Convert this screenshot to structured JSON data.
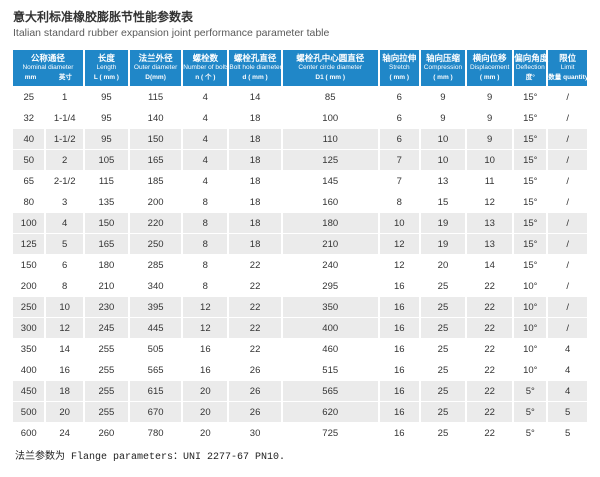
{
  "page": {
    "title_zh": "意大利标准橡胶膨胀节性能参数表",
    "title_en": "Italian standard rubber expansion joint performance parameter table",
    "footer_note": "法兰参数为 Flange parameters：UNI 2277-67 PN10."
  },
  "colors": {
    "header_bg": "#2087c8",
    "stripe_bg": "#ebebeb",
    "header_text": "#ffffff"
  },
  "table": {
    "columns": [
      {
        "zh": "公称通径",
        "en": "Nominal diameter",
        "unit_left": "mm",
        "unit_right": "英寸"
      },
      {
        "zh": "长度",
        "en": "Length",
        "unit": "L ( mm )"
      },
      {
        "zh": "法兰外径",
        "en": "Outer diameter",
        "unit": "D(mm)"
      },
      {
        "zh": "螺栓数",
        "en": "Number of bolts",
        "unit": "n ( 个 )"
      },
      {
        "zh": "螺栓孔直径",
        "en": "Bolt hole diameter",
        "unit": "d ( mm )"
      },
      {
        "zh": "螺栓孔中心圆直径",
        "en": "Center circle diameter",
        "unit": "D1 ( mm )"
      },
      {
        "zh": "轴向拉伸",
        "en": "Stretch",
        "unit": "( mm )"
      },
      {
        "zh": "轴向压缩",
        "en": "Compression",
        "unit": "( mm )"
      },
      {
        "zh": "横向位移",
        "en": "Displacement",
        "unit": "( mm )"
      },
      {
        "zh": "偏向角度",
        "en": "Deflection",
        "unit": "度°"
      },
      {
        "zh": "限位",
        "en": "Limit",
        "unit": "数量 quantity"
      }
    ],
    "rows": [
      [
        "25",
        "1",
        "95",
        "115",
        "4",
        "14",
        "85",
        "6",
        "9",
        "9",
        "15°",
        "/"
      ],
      [
        "32",
        "1-1/4",
        "95",
        "140",
        "4",
        "18",
        "100",
        "6",
        "9",
        "9",
        "15°",
        "/"
      ],
      [
        "40",
        "1-1/2",
        "95",
        "150",
        "4",
        "18",
        "110",
        "6",
        "10",
        "9",
        "15°",
        "/"
      ],
      [
        "50",
        "2",
        "105",
        "165",
        "4",
        "18",
        "125",
        "7",
        "10",
        "10",
        "15°",
        "/"
      ],
      [
        "65",
        "2-1/2",
        "115",
        "185",
        "4",
        "18",
        "145",
        "7",
        "13",
        "11",
        "15°",
        "/"
      ],
      [
        "80",
        "3",
        "135",
        "200",
        "8",
        "18",
        "160",
        "8",
        "15",
        "12",
        "15°",
        "/"
      ],
      [
        "100",
        "4",
        "150",
        "220",
        "8",
        "18",
        "180",
        "10",
        "19",
        "13",
        "15°",
        "/"
      ],
      [
        "125",
        "5",
        "165",
        "250",
        "8",
        "18",
        "210",
        "12",
        "19",
        "13",
        "15°",
        "/"
      ],
      [
        "150",
        "6",
        "180",
        "285",
        "8",
        "22",
        "240",
        "12",
        "20",
        "14",
        "15°",
        "/"
      ],
      [
        "200",
        "8",
        "210",
        "340",
        "8",
        "22",
        "295",
        "16",
        "25",
        "22",
        "10°",
        "/"
      ],
      [
        "250",
        "10",
        "230",
        "395",
        "12",
        "22",
        "350",
        "16",
        "25",
        "22",
        "10°",
        "/"
      ],
      [
        "300",
        "12",
        "245",
        "445",
        "12",
        "22",
        "400",
        "16",
        "25",
        "22",
        "10°",
        "/"
      ],
      [
        "350",
        "14",
        "255",
        "505",
        "16",
        "22",
        "460",
        "16",
        "25",
        "22",
        "10°",
        "4"
      ],
      [
        "400",
        "16",
        "255",
        "565",
        "16",
        "26",
        "515",
        "16",
        "25",
        "22",
        "10°",
        "4"
      ],
      [
        "450",
        "18",
        "255",
        "615",
        "20",
        "26",
        "565",
        "16",
        "25",
        "22",
        "5°",
        "4"
      ],
      [
        "500",
        "20",
        "255",
        "670",
        "20",
        "26",
        "620",
        "16",
        "25",
        "22",
        "5°",
        "5"
      ],
      [
        "600",
        "24",
        "260",
        "780",
        "20",
        "30",
        "725",
        "16",
        "25",
        "22",
        "5°",
        "5"
      ]
    ]
  }
}
